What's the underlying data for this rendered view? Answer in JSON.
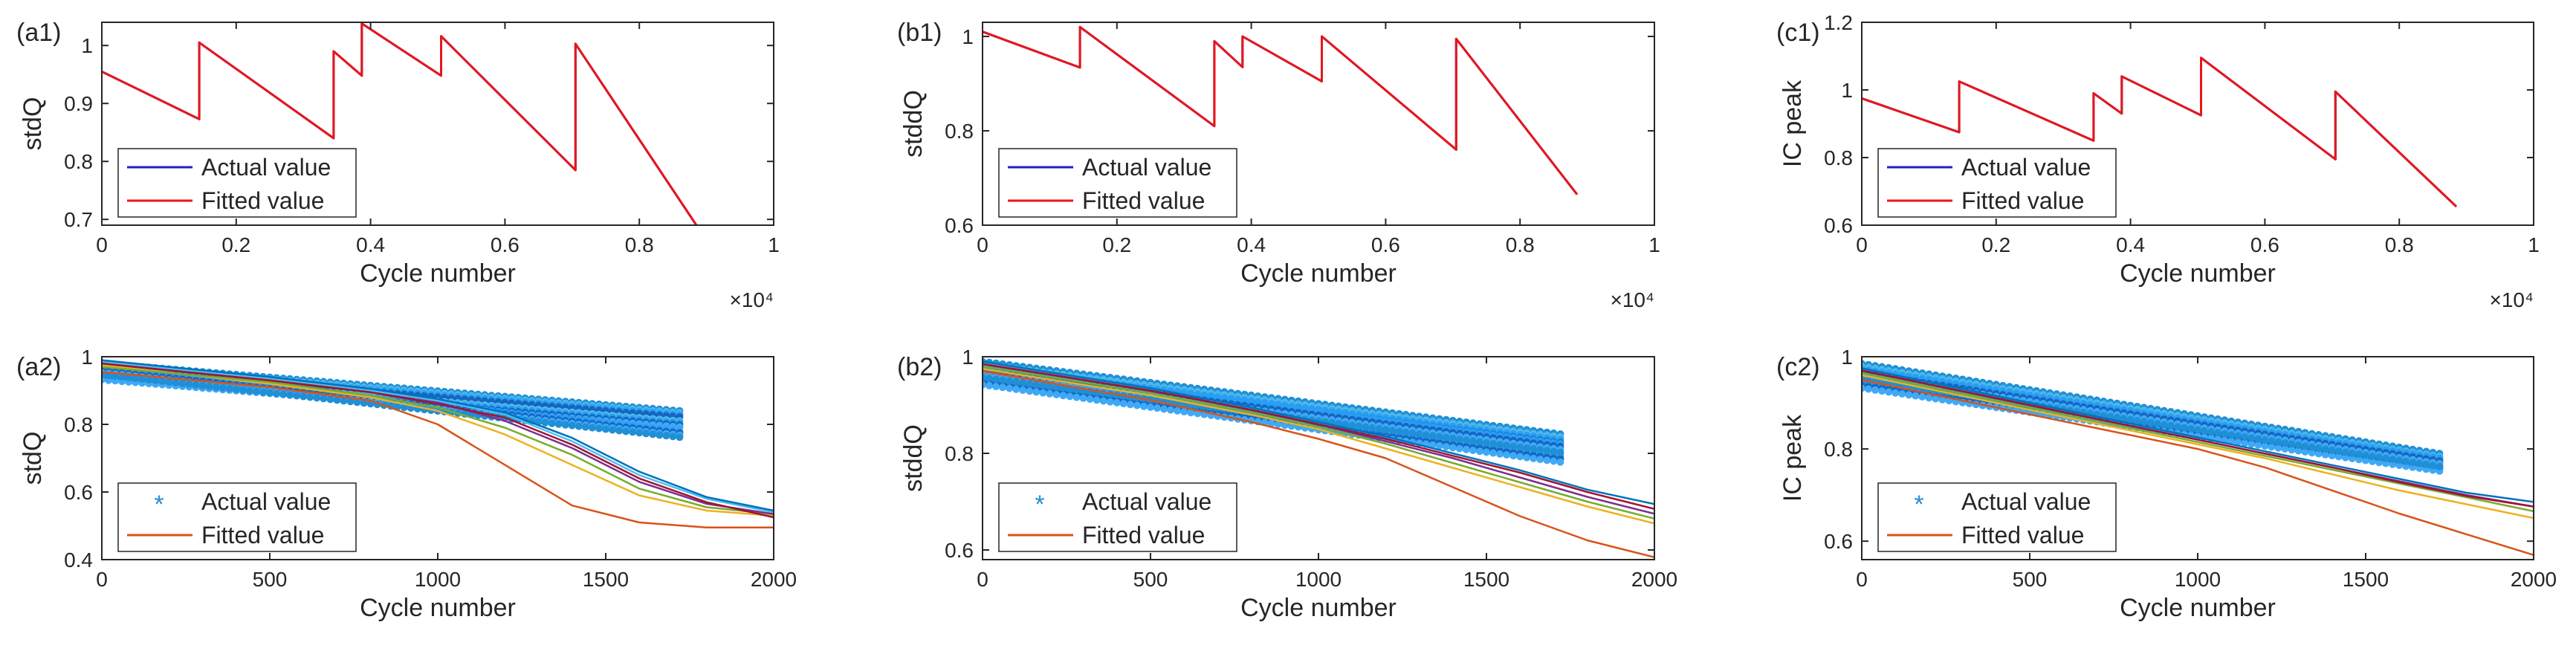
{
  "chart_data": [
    {
      "id": "a1",
      "panel_label": "(a1)",
      "type": "line",
      "xlabel": "Cycle number",
      "ylabel": "stdQ",
      "x_exponent": "×10⁴",
      "xlim": [
        0,
        10000
      ],
      "ylim": [
        0.69,
        1.04
      ],
      "xticks": [
        0,
        2000,
        4000,
        6000,
        8000,
        10000
      ],
      "xtick_labels": [
        "0",
        "0.2",
        "0.4",
        "0.6",
        "0.8",
        "1"
      ],
      "yticks": [
        0.7,
        0.8,
        0.9,
        1.0
      ],
      "ytick_labels": [
        "0.7",
        "0.8",
        "0.9",
        "1"
      ],
      "legend": [
        "Actual value",
        "Fitted value"
      ],
      "legend_position": "bottom-left",
      "series": [
        {
          "name": "Actual value",
          "color": "#2020c0",
          "x": [
            0,
            1450,
            1450,
            3450,
            3450,
            3870,
            3870,
            5050,
            5050,
            7050,
            7050,
            8850
          ],
          "y": [
            0.955,
            0.873,
            1.005,
            0.84,
            0.99,
            0.948,
            1.038,
            0.948,
            1.016,
            0.785,
            1.003,
            0.69
          ]
        },
        {
          "name": "Fitted value",
          "color": "#e8161b",
          "x": [
            0,
            1450,
            1450,
            3450,
            3450,
            3870,
            3870,
            5050,
            5050,
            7050,
            7050,
            8850
          ],
          "y": [
            0.955,
            0.873,
            1.005,
            0.84,
            0.99,
            0.948,
            1.038,
            0.948,
            1.016,
            0.785,
            1.003,
            0.69
          ]
        }
      ]
    },
    {
      "id": "b1",
      "panel_label": "(b1)",
      "type": "line",
      "xlabel": "Cycle number",
      "ylabel": "stddQ",
      "x_exponent": "×10⁴",
      "xlim": [
        0,
        10000
      ],
      "ylim": [
        0.6,
        1.03
      ],
      "xticks": [
        0,
        2000,
        4000,
        6000,
        8000,
        10000
      ],
      "xtick_labels": [
        "0",
        "0.2",
        "0.4",
        "0.6",
        "0.8",
        "1"
      ],
      "yticks": [
        0.6,
        0.8,
        1.0
      ],
      "ytick_labels": [
        "0.6",
        "0.8",
        "1"
      ],
      "legend": [
        "Actual value",
        "Fitted value"
      ],
      "legend_position": "bottom-left",
      "series": [
        {
          "name": "Actual value",
          "color": "#2020c0",
          "x": [
            0,
            1450,
            1450,
            3450,
            3450,
            3870,
            3870,
            5050,
            5050,
            7050,
            7050,
            8850
          ],
          "y": [
            1.01,
            0.934,
            1.02,
            0.81,
            0.99,
            0.935,
            1.0,
            0.905,
            1.0,
            0.76,
            0.995,
            0.665
          ]
        },
        {
          "name": "Fitted value",
          "color": "#e8161b",
          "x": [
            0,
            1450,
            1450,
            3450,
            3450,
            3870,
            3870,
            5050,
            5050,
            7050,
            7050,
            8850
          ],
          "y": [
            1.01,
            0.934,
            1.02,
            0.81,
            0.99,
            0.935,
            1.0,
            0.905,
            1.0,
            0.76,
            0.995,
            0.665
          ]
        }
      ]
    },
    {
      "id": "c1",
      "panel_label": "(c1)",
      "type": "line",
      "xlabel": "Cycle number",
      "ylabel": "IC peak",
      "x_exponent": "×10⁴",
      "xlim": [
        0,
        10000
      ],
      "ylim": [
        0.6,
        1.2
      ],
      "xticks": [
        0,
        2000,
        4000,
        6000,
        8000,
        10000
      ],
      "xtick_labels": [
        "0",
        "0.2",
        "0.4",
        "0.6",
        "0.8",
        "1"
      ],
      "yticks": [
        0.6,
        0.8,
        1.0,
        1.2
      ],
      "ytick_labels": [
        "0.6",
        "0.8",
        "1",
        "1.2"
      ],
      "legend": [
        "Actual value",
        "Fitted value"
      ],
      "legend_position": "bottom-left",
      "series": [
        {
          "name": "Actual value",
          "color": "#2020c0",
          "x": [
            0,
            1450,
            1450,
            3450,
            3450,
            3870,
            3870,
            5050,
            5050,
            7050,
            7050,
            8850
          ],
          "y": [
            0.975,
            0.875,
            1.025,
            0.85,
            0.99,
            0.93,
            1.04,
            0.925,
            1.095,
            0.795,
            0.995,
            0.655
          ]
        },
        {
          "name": "Fitted value",
          "color": "#e8161b",
          "x": [
            0,
            1450,
            1450,
            3450,
            3450,
            3870,
            3870,
            5050,
            5050,
            7050,
            7050,
            8850
          ],
          "y": [
            0.975,
            0.875,
            1.025,
            0.85,
            0.99,
            0.93,
            1.04,
            0.925,
            1.095,
            0.795,
            0.995,
            0.655
          ]
        }
      ]
    },
    {
      "id": "a2",
      "panel_label": "(a2)",
      "type": "line",
      "xlabel": "Cycle number",
      "ylabel": "stdQ",
      "xlim": [
        0,
        2000
      ],
      "ylim": [
        0.4,
        1.0
      ],
      "xticks": [
        0,
        500,
        1000,
        1500,
        2000
      ],
      "xtick_labels": [
        "0",
        "500",
        "1000",
        "1500",
        "2000"
      ],
      "yticks": [
        0.4,
        0.6,
        0.8,
        1.0
      ],
      "ytick_labels": [
        "0.4",
        "0.6",
        "0.8",
        "1"
      ],
      "legend": [
        "Actual value",
        "Fitted value"
      ],
      "legend_position": "bottom-left",
      "markers": {
        "color": "#1f8fd6",
        "series_colors": [
          "#1f8fd6",
          "#4db8e8",
          "#2a9df4",
          "#1565c0",
          "#3fa9f5"
        ],
        "x_start": 0,
        "x_end": 1720,
        "step": 20,
        "band": [
          [
            0.98,
            0.84
          ],
          [
            0.95,
            0.81
          ],
          [
            0.965,
            0.78
          ]
        ]
      },
      "series": [
        {
          "name": "Fitted value",
          "color": "#d95319",
          "x": [
            0,
            500,
            800,
            1000,
            1200,
            1400,
            1600,
            1800,
            2000
          ],
          "y": [
            0.955,
            0.91,
            0.87,
            0.8,
            0.68,
            0.56,
            0.51,
            0.495,
            0.495
          ]
        },
        {
          "color": "#edb120",
          "x": [
            0,
            500,
            800,
            1000,
            1200,
            1400,
            1600,
            1800,
            2000
          ],
          "y": [
            0.975,
            0.92,
            0.88,
            0.84,
            0.77,
            0.68,
            0.59,
            0.545,
            0.53
          ]
        },
        {
          "color": "#77ac30",
          "x": [
            0,
            500,
            800,
            1000,
            1200,
            1400,
            1600,
            1800,
            2000
          ],
          "y": [
            0.97,
            0.925,
            0.885,
            0.85,
            0.79,
            0.71,
            0.61,
            0.555,
            0.535
          ]
        },
        {
          "color": "#7e2f8e",
          "x": [
            0,
            500,
            800,
            1000,
            1200,
            1400,
            1600,
            1800,
            2000
          ],
          "y": [
            0.98,
            0.93,
            0.895,
            0.865,
            0.81,
            0.73,
            0.63,
            0.565,
            0.535
          ]
        },
        {
          "color": "#4dbeee",
          "x": [
            0,
            500,
            800,
            1000,
            1200,
            1400,
            1600,
            1800,
            2000
          ],
          "y": [
            0.985,
            0.935,
            0.9,
            0.87,
            0.83,
            0.75,
            0.65,
            0.58,
            0.54
          ]
        },
        {
          "color": "#a2142f",
          "x": [
            0,
            500,
            800,
            1000,
            1200,
            1400,
            1600,
            1800,
            2000
          ],
          "y": [
            0.98,
            0.93,
            0.895,
            0.86,
            0.82,
            0.74,
            0.64,
            0.57,
            0.525
          ]
        },
        {
          "color": "#0072bd",
          "x": [
            0,
            500,
            800,
            1000,
            1200,
            1400,
            1600,
            1800,
            2000
          ],
          "y": [
            0.99,
            0.94,
            0.905,
            0.875,
            0.835,
            0.76,
            0.66,
            0.585,
            0.545
          ]
        }
      ]
    },
    {
      "id": "b2",
      "panel_label": "(b2)",
      "type": "line",
      "xlabel": "Cycle number",
      "ylabel": "stddQ",
      "xlim": [
        0,
        2000
      ],
      "ylim": [
        0.58,
        1.0
      ],
      "xticks": [
        0,
        500,
        1000,
        1500,
        2000
      ],
      "xtick_labels": [
        "0",
        "500",
        "1000",
        "1500",
        "2000"
      ],
      "yticks": [
        0.6,
        0.8,
        1.0
      ],
      "ytick_labels": [
        "0.6",
        "0.8",
        "1"
      ],
      "legend": [
        "Actual value",
        "Fitted value"
      ],
      "legend_position": "bottom-left",
      "markers": {
        "color": "#1f8fd6",
        "series_colors": [
          "#1f8fd6",
          "#4db8e8",
          "#2a9df4",
          "#1565c0",
          "#3fa9f5"
        ],
        "x_start": 0,
        "x_end": 1720,
        "step": 20,
        "band": [
          [
            0.99,
            0.84
          ],
          [
            0.96,
            0.8
          ],
          [
            0.975,
            0.82
          ]
        ]
      },
      "series": [
        {
          "name": "Fitted value",
          "color": "#d95319",
          "x": [
            0,
            500,
            800,
            1000,
            1200,
            1400,
            1600,
            1800,
            2000
          ],
          "y": [
            0.97,
            0.91,
            0.865,
            0.83,
            0.79,
            0.73,
            0.67,
            0.62,
            0.585
          ]
        },
        {
          "color": "#edb120",
          "x": [
            0,
            500,
            800,
            1000,
            1200,
            1400,
            1600,
            1800,
            2000
          ],
          "y": [
            0.975,
            0.92,
            0.88,
            0.85,
            0.81,
            0.77,
            0.73,
            0.69,
            0.655
          ]
        },
        {
          "color": "#77ac30",
          "x": [
            0,
            500,
            800,
            1000,
            1200,
            1400,
            1600,
            1800,
            2000
          ],
          "y": [
            0.98,
            0.925,
            0.885,
            0.855,
            0.82,
            0.78,
            0.74,
            0.7,
            0.665
          ]
        },
        {
          "color": "#7e2f8e",
          "x": [
            0,
            500,
            800,
            1000,
            1200,
            1400,
            1600,
            1800,
            2000
          ],
          "y": [
            0.985,
            0.93,
            0.89,
            0.86,
            0.825,
            0.79,
            0.75,
            0.71,
            0.675
          ]
        },
        {
          "color": "#0072bd",
          "x": [
            0,
            500,
            800,
            1000,
            1200,
            1400,
            1600,
            1800,
            2000
          ],
          "y": [
            0.99,
            0.935,
            0.895,
            0.865,
            0.835,
            0.8,
            0.765,
            0.725,
            0.695
          ]
        },
        {
          "color": "#a2142f",
          "x": [
            0,
            500,
            800,
            1000,
            1200,
            1400,
            1600,
            1800,
            2000
          ],
          "y": [
            0.985,
            0.93,
            0.89,
            0.86,
            0.83,
            0.795,
            0.76,
            0.72,
            0.685
          ]
        }
      ]
    },
    {
      "id": "c2",
      "panel_label": "(c2)",
      "type": "line",
      "xlabel": "Cycle number",
      "ylabel": "IC peak",
      "xlim": [
        0,
        2000
      ],
      "ylim": [
        0.56,
        1.0
      ],
      "xticks": [
        0,
        500,
        1000,
        1500,
        2000
      ],
      "xtick_labels": [
        "0",
        "500",
        "1000",
        "1500",
        "2000"
      ],
      "yticks": [
        0.6,
        0.8,
        1.0
      ],
      "ytick_labels": [
        "0.6",
        "0.8",
        "1"
      ],
      "legend": [
        "Actual value",
        "Fitted value"
      ],
      "legend_position": "bottom-left",
      "markers": {
        "color": "#1f8fd6",
        "series_colors": [
          "#1f8fd6",
          "#4db8e8",
          "#2a9df4",
          "#1565c0",
          "#3fa9f5"
        ],
        "x_start": 0,
        "x_end": 1720,
        "step": 20,
        "band": [
          [
            0.985,
            0.79
          ],
          [
            0.95,
            0.77
          ],
          [
            0.97,
            0.78
          ]
        ]
      },
      "series": [
        {
          "name": "Fitted value",
          "color": "#d95319",
          "x": [
            0,
            500,
            1000,
            1200,
            1400,
            1600,
            1800,
            2000
          ],
          "y": [
            0.95,
            0.875,
            0.8,
            0.76,
            0.71,
            0.66,
            0.615,
            0.57
          ]
        },
        {
          "color": "#edb120",
          "x": [
            0,
            500,
            1000,
            1200,
            1400,
            1600,
            1800,
            2000
          ],
          "y": [
            0.96,
            0.885,
            0.81,
            0.78,
            0.745,
            0.71,
            0.68,
            0.65
          ]
        },
        {
          "color": "#77ac30",
          "x": [
            0,
            500,
            1000,
            1200,
            1400,
            1600,
            1800,
            2000
          ],
          "y": [
            0.965,
            0.89,
            0.815,
            0.785,
            0.755,
            0.725,
            0.695,
            0.665
          ]
        },
        {
          "color": "#7e2f8e",
          "x": [
            0,
            500,
            1000,
            1200,
            1400,
            1600,
            1800,
            2000
          ],
          "y": [
            0.97,
            0.895,
            0.82,
            0.79,
            0.76,
            0.73,
            0.7,
            0.675
          ]
        },
        {
          "color": "#0072bd",
          "x": [
            0,
            500,
            1000,
            1200,
            1400,
            1600,
            1800,
            2000
          ],
          "y": [
            0.975,
            0.9,
            0.825,
            0.795,
            0.765,
            0.735,
            0.705,
            0.685
          ]
        },
        {
          "color": "#a2142f",
          "x": [
            0,
            500,
            1000,
            1200,
            1400,
            1600,
            1800,
            2000
          ],
          "y": [
            0.97,
            0.895,
            0.82,
            0.79,
            0.76,
            0.728,
            0.698,
            0.675
          ]
        }
      ]
    }
  ]
}
